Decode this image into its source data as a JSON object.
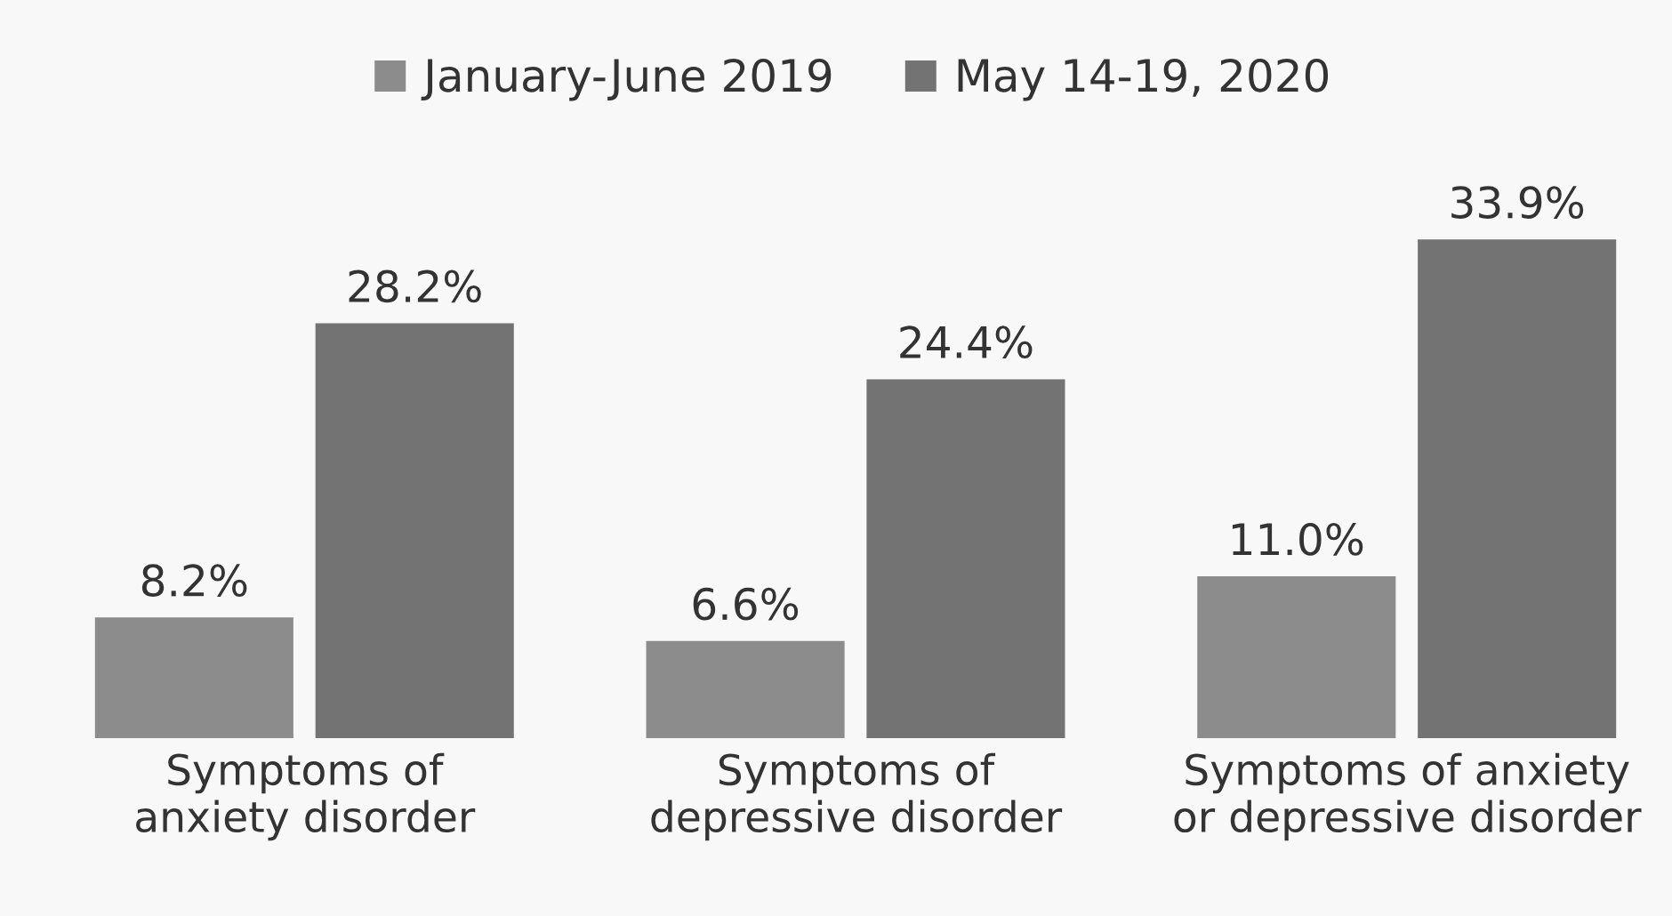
{
  "chart_data": {
    "type": "bar",
    "categories": [
      "Symptoms of\nanxiety disorder",
      "Symptoms of\ndepressive disorder",
      "Symptoms of anxiety\nor depressive disorder"
    ],
    "series": [
      {
        "name": "January-June 2019",
        "color": "#8c8c8c",
        "values": [
          8.2,
          6.6,
          11.0
        ],
        "value_labels": [
          "8.2%",
          "6.6%",
          "11.0%"
        ]
      },
      {
        "name": "May 14-19, 2020",
        "color": "#737373",
        "values": [
          28.2,
          24.4,
          33.9
        ],
        "value_labels": [
          "28.2%",
          "24.4%",
          "33.9%"
        ]
      }
    ],
    "legend": "top",
    "tick_labels": "x"
  }
}
